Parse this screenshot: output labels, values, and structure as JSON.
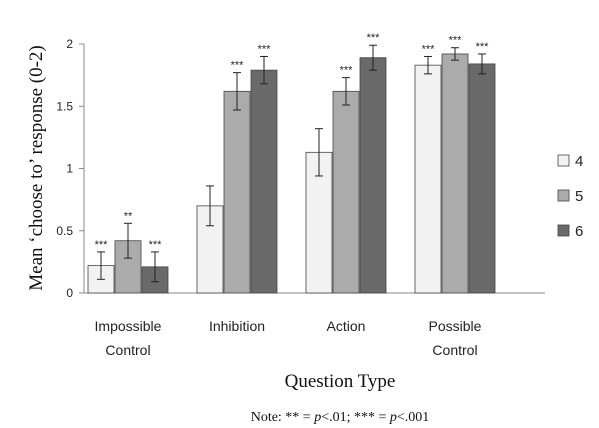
{
  "chart_data": {
    "type": "bar",
    "categories": [
      "Impossible\nControl",
      "Inhibition",
      "Action",
      "Possible\nControl"
    ],
    "series": [
      {
        "name": "4",
        "color": "#f2f2f2",
        "values": [
          0.22,
          0.7,
          1.13,
          1.83
        ],
        "errors": [
          0.11,
          0.16,
          0.19,
          0.07
        ],
        "significance": [
          "***",
          "",
          "",
          "***"
        ]
      },
      {
        "name": "5",
        "color": "#ababab",
        "values": [
          0.42,
          1.62,
          1.62,
          1.92
        ],
        "errors": [
          0.14,
          0.15,
          0.11,
          0.05
        ],
        "significance": [
          "**",
          "***",
          "***",
          "***"
        ]
      },
      {
        "name": "6",
        "color": "#6a6a6a",
        "values": [
          0.21,
          1.79,
          1.89,
          1.84
        ],
        "errors": [
          0.12,
          0.11,
          0.1,
          0.08
        ],
        "significance": [
          "***",
          "***",
          "***",
          "***"
        ]
      }
    ],
    "xlabel": "Question Type",
    "ylabel": "Mean ‘choose to’ response (0-2)",
    "ylim": [
      0,
      2
    ],
    "yticks": [
      "0",
      "0.5",
      "1",
      "1.5",
      "2"
    ],
    "legend_position": "right",
    "grid": false,
    "note": "Note: ** = p<.01; *** = p<.001"
  }
}
